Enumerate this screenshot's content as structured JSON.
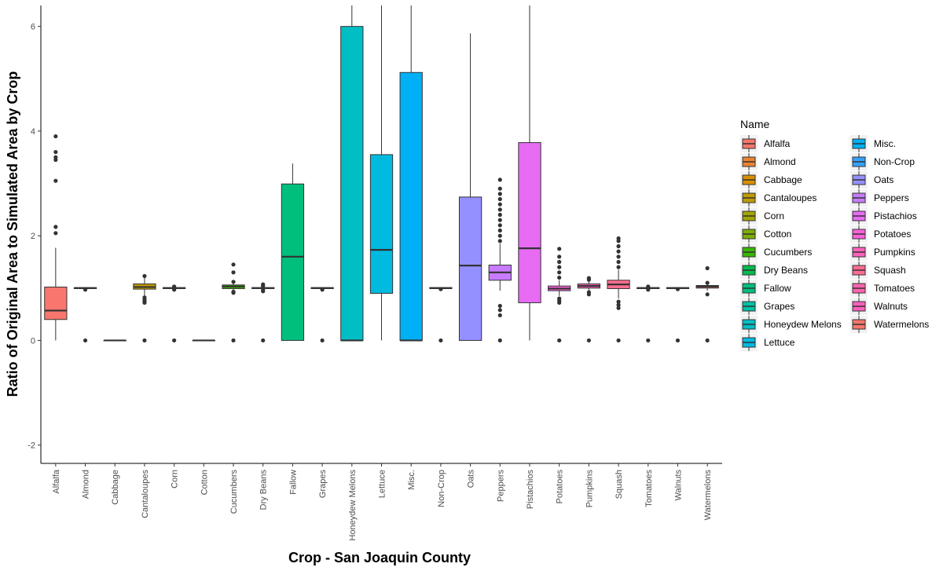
{
  "chart_data": {
    "type": "boxplot",
    "xlabel": "Crop - San Joaquin County",
    "ylabel": "Ratio of Original Area to Simulated Area by Crop",
    "ylim": [
      -2.35,
      6.4
    ],
    "yticks": [
      -2,
      0,
      2,
      4,
      6
    ],
    "grid": false,
    "legend": {
      "title": "Name",
      "placement": "right",
      "columns": 2
    },
    "categories": [
      "Alfalfa",
      "Almond",
      "Cabbage",
      "Cantaloupes",
      "Corn",
      "Cotton",
      "Cucumbers",
      "Dry Beans",
      "Fallow",
      "Grapes",
      "Honeydew Melons",
      "Lettuce",
      "Misc.",
      "Non-Crop",
      "Oats",
      "Peppers",
      "Pistachios",
      "Potatoes",
      "Pumpkins",
      "Squash",
      "Tomatoes",
      "Walnuts",
      "Watermelons"
    ],
    "boxes": [
      {
        "name": "Alfalfa",
        "color": "#F8766D",
        "q1": 0.4,
        "median": 0.57,
        "q3": 1.02,
        "whisker_low": 0,
        "whisker_high": 1.77,
        "outliers": [
          2.05,
          2.17,
          3.05,
          3.45,
          3.5,
          3.6,
          3.9
        ]
      },
      {
        "name": "Almond",
        "color": "#EA8331",
        "q1": 0.99,
        "median": 1.0,
        "q3": 1.01,
        "whisker_low": 0.99,
        "whisker_high": 1.01,
        "outliers": [
          0,
          0.97
        ]
      },
      {
        "name": "Cabbage",
        "color": "#D89000",
        "q1": 0,
        "median": 0,
        "q3": 0,
        "whisker_low": 0,
        "whisker_high": 0,
        "outliers": []
      },
      {
        "name": "Cantaloupes",
        "color": "#C09B00",
        "q1": 0.98,
        "median": 1.02,
        "q3": 1.08,
        "whisker_low": 0.85,
        "whisker_high": 1.2,
        "outliers": [
          0,
          0.72,
          0.75,
          0.78,
          0.82,
          1.23
        ]
      },
      {
        "name": "Corn",
        "color": "#A3A500",
        "q1": 0.99,
        "median": 1.0,
        "q3": 1.01,
        "whisker_low": 0.99,
        "whisker_high": 1.01,
        "outliers": [
          0,
          0.97,
          1.03
        ]
      },
      {
        "name": "Cotton",
        "color": "#7CAE00",
        "q1": 0,
        "median": 0,
        "q3": 0,
        "whisker_low": 0,
        "whisker_high": 0,
        "outliers": []
      },
      {
        "name": "Cucumbers",
        "color": "#39B600",
        "q1": 0.99,
        "median": 1.03,
        "q3": 1.06,
        "whisker_low": 0.95,
        "whisker_high": 1.1,
        "outliers": [
          0,
          0.91,
          0.93,
          1.12,
          1.3,
          1.45
        ]
      },
      {
        "name": "Dry Beans",
        "color": "#00BB4E",
        "q1": 0.99,
        "median": 1.0,
        "q3": 1.01,
        "whisker_low": 0.99,
        "whisker_high": 1.01,
        "outliers": [
          0,
          0.94,
          0.96,
          1.04,
          1.07
        ]
      },
      {
        "name": "Fallow",
        "color": "#00BF7D",
        "q1": 0,
        "median": 1.6,
        "q3": 2.99,
        "whisker_low": 0,
        "whisker_high": 3.38,
        "outliers": []
      },
      {
        "name": "Grapes",
        "color": "#00C1A3",
        "q1": 0.99,
        "median": 1.0,
        "q3": 1.01,
        "whisker_low": 0.99,
        "whisker_high": 1.01,
        "outliers": [
          0,
          0.97
        ]
      },
      {
        "name": "Honeydew Melons",
        "color": "#00BFC4",
        "q1": 0,
        "median": 0,
        "q3": 6.0,
        "whisker_low": 0,
        "whisker_high": 6.4,
        "outliers": []
      },
      {
        "name": "Lettuce",
        "color": "#00BAE0",
        "q1": 0.9,
        "median": 1.73,
        "q3": 3.55,
        "whisker_low": 0,
        "whisker_high": 6.4,
        "outliers": []
      },
      {
        "name": "Misc.",
        "color": "#00B0F6",
        "q1": 0,
        "median": 0,
        "q3": 5.12,
        "whisker_low": 0,
        "whisker_high": 6.4,
        "outliers": []
      },
      {
        "name": "Non-Crop",
        "color": "#35A2FF",
        "q1": 0.99,
        "median": 1.0,
        "q3": 1.01,
        "whisker_low": 0.99,
        "whisker_high": 1.01,
        "outliers": [
          0,
          0.98
        ]
      },
      {
        "name": "Oats",
        "color": "#9590FF",
        "q1": 0,
        "median": 1.43,
        "q3": 2.74,
        "whisker_low": 0,
        "whisker_high": 5.87,
        "outliers": []
      },
      {
        "name": "Peppers",
        "color": "#C77CFF",
        "q1": 1.15,
        "median": 1.3,
        "q3": 1.44,
        "whisker_low": 0.95,
        "whisker_high": 1.85,
        "outliers": [
          0,
          0.48,
          0.58,
          0.66,
          1.9,
          2.0,
          2.1,
          2.2,
          2.3,
          2.4,
          2.5,
          2.6,
          2.7,
          2.8,
          2.9,
          3.07
        ]
      },
      {
        "name": "Pistachios",
        "color": "#E76BF3",
        "q1": 0.72,
        "median": 1.76,
        "q3": 3.78,
        "whisker_low": 0,
        "whisker_high": 6.4,
        "outliers": []
      },
      {
        "name": "Potatoes",
        "color": "#FA62DB",
        "q1": 0.95,
        "median": 0.99,
        "q3": 1.04,
        "whisker_low": 0.85,
        "whisker_high": 1.15,
        "outliers": [
          0,
          0.72,
          0.76,
          0.8,
          1.2,
          1.3,
          1.4,
          1.5,
          1.6,
          1.75
        ]
      },
      {
        "name": "Pumpkins",
        "color": "#FF62BC",
        "q1": 1.0,
        "median": 1.04,
        "q3": 1.08,
        "whisker_low": 0.95,
        "whisker_high": 1.14,
        "outliers": [
          0,
          0.88,
          0.92,
          1.16,
          1.19
        ]
      },
      {
        "name": "Squash",
        "color": "#FF6C91",
        "q1": 0.99,
        "median": 1.07,
        "q3": 1.15,
        "whisker_low": 0.8,
        "whisker_high": 1.35,
        "outliers": [
          0,
          0.62,
          0.68,
          0.74,
          1.4,
          1.5,
          1.6,
          1.7,
          1.8,
          1.9,
          1.95
        ]
      },
      {
        "name": "Tomatoes",
        "color": "#FF64B0",
        "q1": 0.99,
        "median": 1.0,
        "q3": 1.01,
        "whisker_low": 0.99,
        "whisker_high": 1.01,
        "outliers": [
          0,
          0.97,
          1.03
        ]
      },
      {
        "name": "Walnuts",
        "color": "#FF62BC",
        "q1": 0.99,
        "median": 1.0,
        "q3": 1.01,
        "whisker_low": 0.99,
        "whisker_high": 1.01,
        "outliers": [
          0,
          0.98
        ]
      },
      {
        "name": "Watermelons",
        "color": "#F8766D",
        "q1": 1.0,
        "median": 1.03,
        "q3": 1.05,
        "whisker_low": 0.95,
        "whisker_high": 1.08,
        "outliers": [
          0,
          0.88,
          1.1,
          1.38
        ]
      }
    ],
    "legend_colors": [
      "#F8766D",
      "#EA8331",
      "#D89000",
      "#C09B00",
      "#A3A500",
      "#7CAE00",
      "#39B600",
      "#00BB4E",
      "#00BF7D",
      "#00C1A3",
      "#00BFC4",
      "#00BAE0",
      "#00B0F6",
      "#00BAE0",
      "#00B0F6",
      "#35A2FF",
      "#9590FF",
      "#C77CFF",
      "#E76BF3",
      "#FA62DB",
      "#FF62BC",
      "#FF6C91",
      "#F8766D"
    ]
  }
}
